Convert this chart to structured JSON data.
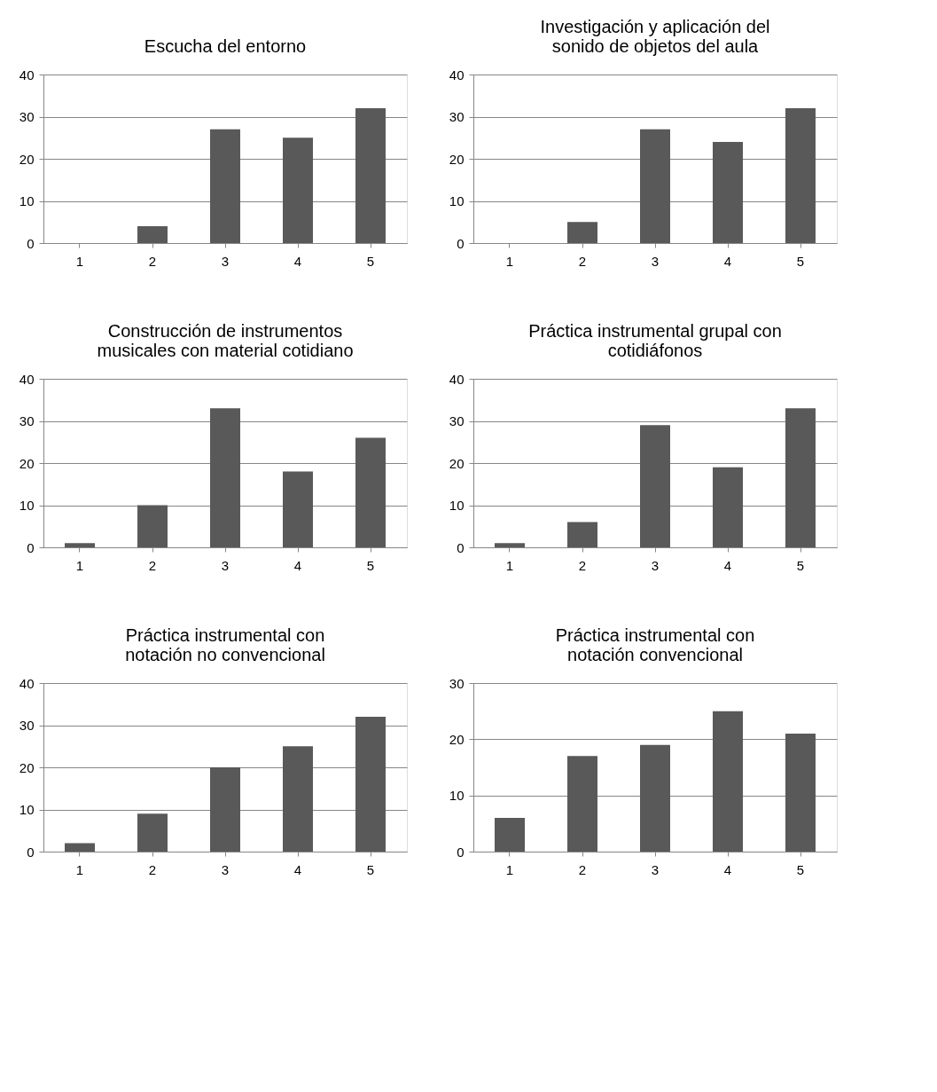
{
  "chart_data": [
    {
      "type": "bar",
      "title": "Escucha del entorno",
      "categories": [
        "1",
        "2",
        "3",
        "4",
        "5"
      ],
      "values": [
        0,
        4,
        27,
        25,
        32
      ],
      "color": "#595959",
      "ylim": [
        0,
        40
      ],
      "yticks": [
        0,
        10,
        20,
        30,
        40
      ],
      "grid": "y"
    },
    {
      "type": "bar",
      "title": "Investigación y aplicación del\nsonido de objetos del aula",
      "categories": [
        "1",
        "2",
        "3",
        "4",
        "5"
      ],
      "values": [
        0,
        5,
        27,
        24,
        32
      ],
      "color": "#595959",
      "ylim": [
        0,
        40
      ],
      "yticks": [
        0,
        10,
        20,
        30,
        40
      ],
      "grid": "y"
    },
    {
      "type": "bar",
      "title": "Construcción de instrumentos\nmusicales con material cotidiano",
      "categories": [
        "1",
        "2",
        "3",
        "4",
        "5"
      ],
      "values": [
        1,
        10,
        33,
        18,
        26
      ],
      "color": "#595959",
      "ylim": [
        0,
        40
      ],
      "yticks": [
        0,
        10,
        20,
        30,
        40
      ],
      "grid": "y"
    },
    {
      "type": "bar",
      "title": "Práctica instrumental grupal con\ncotidiáfonos",
      "categories": [
        "1",
        "2",
        "3",
        "4",
        "5"
      ],
      "values": [
        1,
        6,
        29,
        19,
        33
      ],
      "color": "#595959",
      "ylim": [
        0,
        40
      ],
      "yticks": [
        0,
        10,
        20,
        30,
        40
      ],
      "grid": "y"
    },
    {
      "type": "bar",
      "title": "Práctica instrumental con\nnotación no convencional",
      "categories": [
        "1",
        "2",
        "3",
        "4",
        "5"
      ],
      "values": [
        2,
        9,
        20,
        25,
        32
      ],
      "color": "#595959",
      "ylim": [
        0,
        40
      ],
      "yticks": [
        0,
        10,
        20,
        30,
        40
      ],
      "grid": "y"
    },
    {
      "type": "bar",
      "title": "Práctica instrumental con\nnotación convencional",
      "categories": [
        "1",
        "2",
        "3",
        "4",
        "5"
      ],
      "values": [
        6,
        17,
        19,
        25,
        21
      ],
      "color": "#595959",
      "ylim": [
        0,
        30
      ],
      "yticks": [
        0,
        10,
        20,
        30
      ],
      "grid": "y"
    }
  ]
}
